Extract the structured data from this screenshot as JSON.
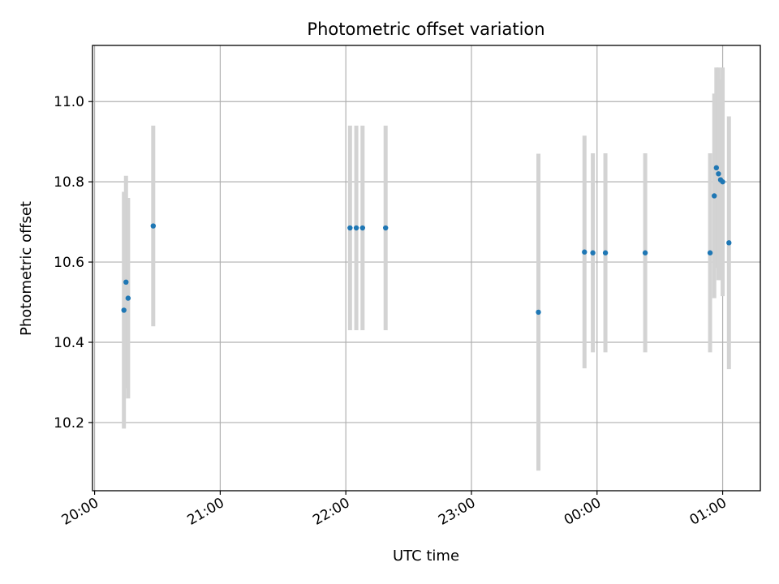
{
  "chart_data": {
    "type": "scatter",
    "title": "Photometric offset variation",
    "xlabel": "UTC time",
    "ylabel": "Photometric offset",
    "xlim": [
      "19:59",
      "01:18"
    ],
    "ylim": [
      10.03,
      11.14
    ],
    "x_ticks": [
      "20:00",
      "21:00",
      "22:00",
      "23:00",
      "00:00",
      "01:00"
    ],
    "y_ticks": [
      "10.2",
      "10.4",
      "10.6",
      "10.8",
      "11.0"
    ],
    "grid": true,
    "colors": {
      "point": "#1f77b4",
      "errorbar": "#d3d3d3",
      "grid": "#b0b0b0",
      "axes": "#000000"
    },
    "points": [
      {
        "x": "20:14",
        "y": 10.48,
        "yerr": 0.295
      },
      {
        "x": "20:15",
        "y": 10.55,
        "yerr": 0.265
      },
      {
        "x": "20:16",
        "y": 10.51,
        "yerr": 0.25
      },
      {
        "x": "20:28",
        "y": 10.69,
        "yerr": 0.25
      },
      {
        "x": "22:02",
        "y": 10.685,
        "yerr": 0.255
      },
      {
        "x": "22:05",
        "y": 10.685,
        "yerr": 0.255
      },
      {
        "x": "22:08",
        "y": 10.685,
        "yerr": 0.255
      },
      {
        "x": "22:19",
        "y": 10.685,
        "yerr": 0.255
      },
      {
        "x": "23:32",
        "y": 10.475,
        "yerr": 0.395
      },
      {
        "x": "23:54",
        "y": 10.625,
        "yerr": 0.29
      },
      {
        "x": "23:58",
        "y": 10.623,
        "yerr": 0.248
      },
      {
        "x": "00:04",
        "y": 10.623,
        "yerr": 0.248
      },
      {
        "x": "00:23",
        "y": 10.623,
        "yerr": 0.248
      },
      {
        "x": "00:54",
        "y": 10.623,
        "yerr": 0.248
      },
      {
        "x": "00:56",
        "y": 10.765,
        "yerr": 0.255
      },
      {
        "x": "00:57",
        "y": 10.835,
        "yerr": 0.25
      },
      {
        "x": "00:58",
        "y": 10.82,
        "yerr": 0.265
      },
      {
        "x": "00:59",
        "y": 10.805,
        "yerr": 0.25
      },
      {
        "x": "01:00",
        "y": 10.8,
        "yerr": 0.285
      },
      {
        "x": "01:03",
        "y": 10.648,
        "yerr": 0.315
      }
    ]
  }
}
